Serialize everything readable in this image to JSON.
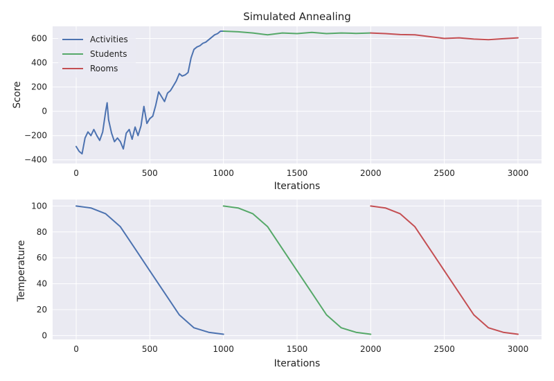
{
  "chart_data": [
    {
      "type": "line",
      "title": "Simulated Annealing",
      "xlabel": "Iterations",
      "ylabel": "Score",
      "xlim": [
        -160,
        3160
      ],
      "ylim": [
        -430,
        700
      ],
      "xticks": [
        0,
        500,
        1000,
        1500,
        2000,
        2500,
        3000
      ],
      "yticks": [
        -400,
        -200,
        0,
        200,
        400,
        600
      ],
      "grid": true,
      "legend": "top-left",
      "series": [
        {
          "name": "Activities",
          "color": "#4c72b0",
          "x": [
            0,
            20,
            40,
            60,
            80,
            100,
            120,
            140,
            160,
            180,
            200,
            210,
            220,
            240,
            260,
            280,
            300,
            320,
            340,
            360,
            380,
            400,
            420,
            440,
            460,
            480,
            500,
            520,
            540,
            560,
            580,
            600,
            620,
            640,
            660,
            680,
            700,
            720,
            740,
            760,
            780,
            800,
            820,
            840,
            860,
            880,
            900,
            920,
            940,
            960,
            980,
            1000
          ],
          "y": [
            -290,
            -330,
            -350,
            -220,
            -170,
            -200,
            -150,
            -200,
            -240,
            -170,
            0,
            70,
            -70,
            -180,
            -250,
            -220,
            -250,
            -310,
            -180,
            -150,
            -230,
            -130,
            -200,
            -120,
            40,
            -100,
            -60,
            -40,
            50,
            160,
            120,
            80,
            150,
            170,
            210,
            250,
            310,
            290,
            300,
            320,
            440,
            510,
            530,
            540,
            560,
            570,
            590,
            610,
            630,
            640,
            660,
            660
          ]
        },
        {
          "name": "Students",
          "color": "#55a868",
          "x": [
            1000,
            1100,
            1200,
            1300,
            1400,
            1500,
            1600,
            1700,
            1800,
            1900,
            2000
          ],
          "y": [
            660,
            655,
            645,
            630,
            645,
            640,
            650,
            640,
            645,
            642,
            645
          ]
        },
        {
          "name": "Rooms",
          "color": "#c44e52",
          "x": [
            2000,
            2100,
            2200,
            2300,
            2400,
            2500,
            2600,
            2700,
            2800,
            2900,
            3000
          ],
          "y": [
            645,
            640,
            632,
            630,
            615,
            600,
            605,
            595,
            590,
            598,
            605
          ]
        }
      ]
    },
    {
      "type": "line",
      "title": "",
      "xlabel": "Iterations",
      "ylabel": "Temperature",
      "xlim": [
        -160,
        3160
      ],
      "ylim": [
        -3,
        105
      ],
      "xticks": [
        0,
        500,
        1000,
        1500,
        2000,
        2500,
        3000
      ],
      "yticks": [
        0,
        20,
        40,
        60,
        80,
        100
      ],
      "grid": true,
      "series": [
        {
          "color": "#4c72b0",
          "x": [
            0,
            100,
            200,
            300,
            400,
            500,
            600,
            700,
            800,
            900,
            1000
          ],
          "y": [
            100,
            98.5,
            94,
            84,
            67,
            50,
            33,
            16,
            6,
            2.5,
            1
          ]
        },
        {
          "color": "#55a868",
          "x": [
            1000,
            1100,
            1200,
            1300,
            1400,
            1500,
            1600,
            1700,
            1800,
            1900,
            2000
          ],
          "y": [
            100,
            98.5,
            94,
            84,
            67,
            50,
            33,
            16,
            6,
            2.5,
            1
          ]
        },
        {
          "color": "#c44e52",
          "x": [
            2000,
            2100,
            2200,
            2300,
            2400,
            2500,
            2600,
            2700,
            2800,
            2900,
            3000
          ],
          "y": [
            100,
            98.5,
            94,
            84,
            67,
            50,
            33,
            16,
            6,
            2.5,
            1
          ]
        }
      ]
    }
  ]
}
